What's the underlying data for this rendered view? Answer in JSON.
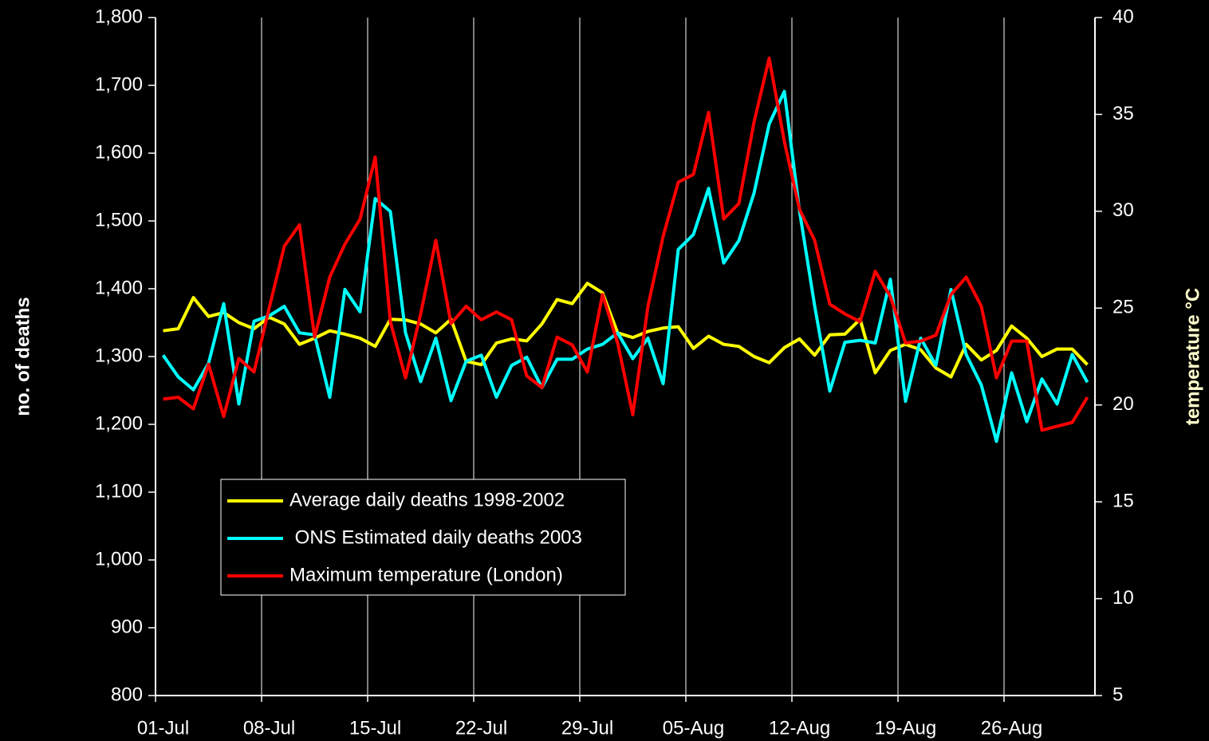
{
  "chart_data": {
    "type": "line",
    "ylabel": "no. of deaths",
    "y2label": "temperature  °C",
    "categories": [
      "01-Jul",
      null,
      null,
      null,
      null,
      null,
      null,
      "08-Jul",
      null,
      null,
      null,
      null,
      null,
      null,
      "15-Jul",
      null,
      null,
      null,
      null,
      null,
      null,
      "22-Jul",
      null,
      null,
      null,
      null,
      null,
      null,
      "29-Jul",
      null,
      null,
      null,
      null,
      null,
      null,
      "05-Aug",
      null,
      null,
      null,
      null,
      null,
      null,
      "12-Aug",
      null,
      null,
      null,
      null,
      null,
      null,
      "19-Aug",
      null,
      null,
      null,
      null,
      null,
      null,
      "26-Aug",
      null,
      null,
      null,
      null,
      null
    ],
    "series": [
      {
        "name": "Average daily deaths 1998-2002",
        "color": "#ffff00",
        "values": [
          1338,
          1341,
          1387,
          1359,
          1365,
          1350,
          1341,
          1358,
          1348,
          1318,
          1327,
          1338,
          1333,
          1327,
          1315,
          1355,
          1354,
          1348,
          1335,
          1355,
          1293,
          1288,
          1320,
          1326,
          1323,
          1348,
          1384,
          1378,
          1408,
          1394,
          1335,
          1328,
          1337,
          1342,
          1344,
          1312,
          1330,
          1318,
          1315,
          1300,
          1291,
          1313,
          1326,
          1302,
          1332,
          1333,
          1355,
          1276,
          1309,
          1318,
          1310,
          1283,
          1270,
          1318,
          1295,
          1309,
          1345,
          1327,
          1300,
          1311,
          1311,
          1288
        ]
      },
      {
        "name": " ONS Estimated daily deaths 2003",
        "color": "#00ffff",
        "values": [
          1302,
          1270,
          1251,
          1290,
          1378,
          1230,
          1352,
          1360,
          1374,
          1335,
          1332,
          1240,
          1399,
          1366,
          1533,
          1514,
          1335,
          1263,
          1327,
          1235,
          1293,
          1302,
          1240,
          1287,
          1299,
          1254,
          1296,
          1296,
          1311,
          1318,
          1335,
          1297,
          1327,
          1260,
          1458,
          1480,
          1548,
          1438,
          1471,
          1541,
          1643,
          1691,
          1515,
          1375,
          1249,
          1321,
          1324,
          1320,
          1414,
          1234,
          1327,
          1287,
          1399,
          1303,
          1258,
          1175,
          1276,
          1204,
          1267,
          1230,
          1303,
          1262
        ]
      },
      {
        "name": "Maximum temperature (London)",
        "color": "#ff0000",
        "axis": "y2",
        "values": [
          20.3,
          20.4,
          19.8,
          22.1,
          19.4,
          22.4,
          21.7,
          25.0,
          28.2,
          29.3,
          23.5,
          26.6,
          28.3,
          29.6,
          32.8,
          24.3,
          21.4,
          24.7,
          28.5,
          24.2,
          25.1,
          24.4,
          24.8,
          24.4,
          21.5,
          20.9,
          23.5,
          23.1,
          21.7,
          25.7,
          23.2,
          19.5,
          25.1,
          28.7,
          31.5,
          31.9,
          35.1,
          29.6,
          30.4,
          34.6,
          37.9,
          33.6,
          30.1,
          28.5,
          25.2,
          24.7,
          24.3,
          26.9,
          25.6,
          23.2,
          23.3,
          23.6,
          25.7,
          26.6,
          25.1,
          21.4,
          23.3,
          23.3,
          18.7,
          18.9,
          19.1,
          20.4
        ]
      }
    ],
    "ylim": [
      800,
      1800
    ],
    "yticks": [
      800,
      900,
      {
        "value": 1000,
        "label": "1,000"
      },
      {
        "value": 1100,
        "label": "1,100"
      },
      {
        "value": 1200,
        "label": "1,200"
      },
      {
        "value": 1300,
        "label": "1,300"
      },
      {
        "value": 1400,
        "label": "1,400"
      },
      {
        "value": 1500,
        "label": "1,500"
      },
      {
        "value": 1600,
        "label": "1,600"
      },
      {
        "value": 1700,
        "label": "1,700"
      },
      {
        "value": 1800,
        "label": "1,800"
      }
    ],
    "y2lim": [
      5,
      40
    ],
    "y2ticks": [
      5,
      10,
      15,
      20,
      25,
      30,
      35,
      40
    ],
    "grid": true,
    "legend": "lower left"
  }
}
